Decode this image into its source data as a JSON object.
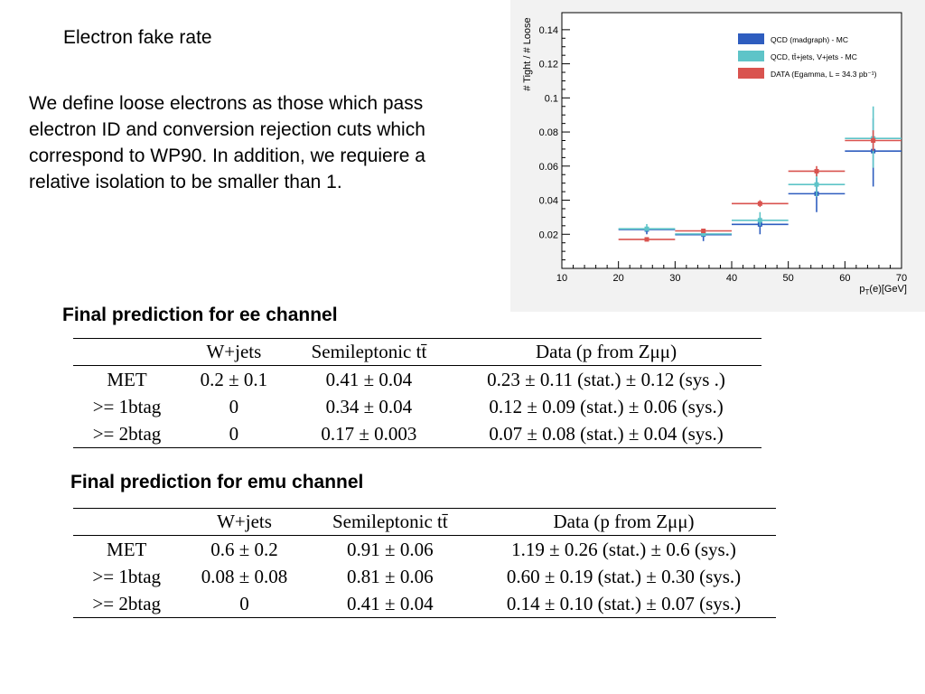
{
  "slide": {
    "title": "Electron fake rate",
    "description": "We define loose electrons as those which pass electron ID and conversion rejection cuts which correspond to WP90. In addition, we requiere a  relative isolation to be smaller than 1."
  },
  "chart_data": {
    "type": "scatter",
    "ylabel": "# Tight / # Loose",
    "xlabel": "p",
    "xlabel_sub": "T",
    "xlabel_suffix": "(e)[GeV]",
    "xlim": [
      10,
      70
    ],
    "ylim": [
      0,
      0.15
    ],
    "xticks": [
      "10",
      "20",
      "30",
      "40",
      "50",
      "60",
      "70"
    ],
    "yticks": [
      "0.02",
      "0.04",
      "0.06",
      "0.08",
      "0.1",
      "0.12",
      "0.14"
    ],
    "legend_position": "top-right",
    "series": [
      {
        "name": "QCD (madgraph) - MC",
        "color": "#2E5DBF",
        "points": [
          {
            "x": 25,
            "y": 0.022,
            "xlo": 20,
            "xhi": 30,
            "yerr": 0.002
          },
          {
            "x": 35,
            "y": 0.019,
            "xlo": 30,
            "xhi": 40,
            "yerr": 0.003
          },
          {
            "x": 45,
            "y": 0.025,
            "xlo": 40,
            "xhi": 50,
            "yerr": 0.005
          },
          {
            "x": 55,
            "y": 0.043,
            "xlo": 50,
            "xhi": 60,
            "yerr": 0.01
          },
          {
            "x": 65,
            "y": 0.068,
            "xlo": 60,
            "xhi": 70,
            "yerr": 0.02
          }
        ]
      },
      {
        "name": "QCD, tt̄+jets, V+jets - MC",
        "color": "#5EC4C8",
        "points": [
          {
            "x": 25,
            "y": 0.024,
            "xlo": 20,
            "xhi": 30,
            "yerr": 0.002
          },
          {
            "x": 35,
            "y": 0.021,
            "xlo": 30,
            "xhi": 40,
            "yerr": 0.002
          },
          {
            "x": 45,
            "y": 0.029,
            "xlo": 40,
            "xhi": 50,
            "yerr": 0.004
          },
          {
            "x": 55,
            "y": 0.05,
            "xlo": 50,
            "xhi": 60,
            "yerr": 0.008
          },
          {
            "x": 65,
            "y": 0.077,
            "xlo": 60,
            "xhi": 70,
            "yerr": 0.018
          }
        ]
      },
      {
        "name": "DATA (Egamma, L = 34.3 pb⁻¹)",
        "color": "#D9534F",
        "points": [
          {
            "x": 25,
            "y": 0.017,
            "xlo": 20,
            "xhi": 30,
            "yerr": 0.001
          },
          {
            "x": 35,
            "y": 0.022,
            "xlo": 30,
            "xhi": 40,
            "yerr": 0.001
          },
          {
            "x": 45,
            "y": 0.038,
            "xlo": 40,
            "xhi": 50,
            "yerr": 0.002
          },
          {
            "x": 55,
            "y": 0.057,
            "xlo": 50,
            "xhi": 60,
            "yerr": 0.003
          },
          {
            "x": 65,
            "y": 0.075,
            "xlo": 60,
            "xhi": 70,
            "yerr": 0.006
          }
        ]
      }
    ]
  },
  "ee": {
    "heading": "Final prediction for ee channel",
    "columns": [
      "",
      "W+jets",
      "Semileptonic tt̄",
      "Data (p from Zμμ)"
    ],
    "rows": [
      [
        "MET",
        "0.2 ± 0.1",
        "0.41 ± 0.04",
        "0.23 ± 0.11 (stat.) ± 0.12 (sys .)"
      ],
      [
        ">= 1btag",
        "0",
        "0.34 ± 0.04",
        "0.12 ± 0.09 (stat.) ± 0.06 (sys.)"
      ],
      [
        ">= 2btag",
        "0",
        "0.17 ± 0.003",
        "0.07 ± 0.08 (stat.) ± 0.04 (sys.)"
      ]
    ]
  },
  "emu": {
    "heading": "Final prediction for emu channel",
    "columns": [
      "",
      "W+jets",
      "Semileptonic tt̄",
      "Data (p from Zμμ)"
    ],
    "rows": [
      [
        "MET",
        "0.6 ± 0.2",
        "0.91 ± 0.06",
        "1.19 ± 0.26 (stat.) ± 0.6 (sys.)"
      ],
      [
        ">= 1btag",
        "0.08 ± 0.08",
        "0.81 ± 0.06",
        "0.60 ± 0.19 (stat.) ± 0.30 (sys.)"
      ],
      [
        ">= 2btag",
        "0",
        "0.41 ± 0.04",
        "0.14 ± 0.10 (stat.) ± 0.07 (sys.)"
      ]
    ]
  }
}
